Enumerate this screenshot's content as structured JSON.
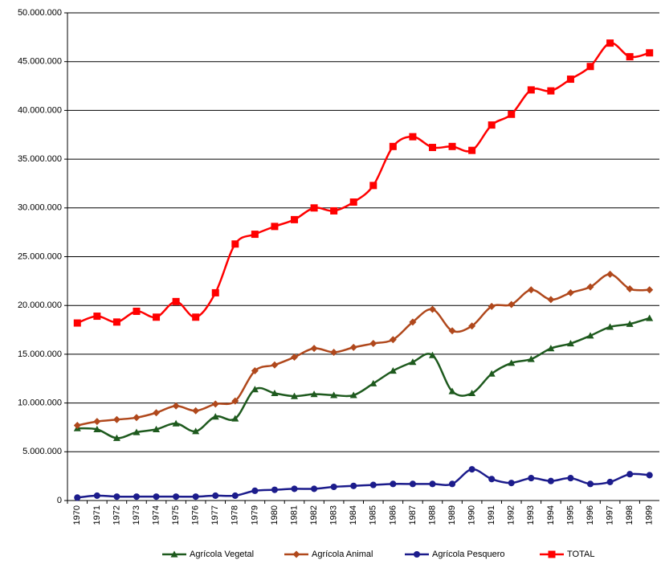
{
  "chart_data": {
    "type": "line",
    "categories": [
      "1970",
      "1971",
      "1972",
      "1973",
      "1974",
      "1975",
      "1976",
      "1977",
      "1978",
      "1979",
      "1980",
      "1981",
      "1982",
      "1983",
      "1984",
      "1985",
      "1986",
      "1987",
      "1988",
      "1989",
      "1990",
      "1991",
      "1992",
      "1993",
      "1994",
      "1995",
      "1996",
      "1997",
      "1998",
      "1999"
    ],
    "series": [
      {
        "name": "Agrícola Vegetal",
        "color": "#1e5a1e",
        "marker": "triangle",
        "values": [
          7400000,
          7300000,
          6400000,
          7000000,
          7300000,
          7900000,
          7100000,
          8600000,
          8400000,
          11400000,
          11000000,
          10700000,
          10900000,
          10800000,
          10800000,
          12000000,
          13300000,
          14200000,
          14900000,
          11200000,
          11000000,
          13000000,
          14100000,
          14500000,
          15600000,
          16100000,
          16900000,
          17800000,
          18100000,
          18700000
        ]
      },
      {
        "name": "Agrícola Animal",
        "color": "#b0481c",
        "marker": "diamond",
        "values": [
          7700000,
          8100000,
          8300000,
          8500000,
          9000000,
          9700000,
          9200000,
          9900000,
          10200000,
          13300000,
          13900000,
          14700000,
          15600000,
          15200000,
          15700000,
          16100000,
          16500000,
          18300000,
          19600000,
          17400000,
          17900000,
          19900000,
          20100000,
          21600000,
          20600000,
          21300000,
          21900000,
          23200000,
          21700000,
          21600000
        ]
      },
      {
        "name": "Agrícola Pesquero",
        "color": "#1c1c8c",
        "marker": "circle",
        "values": [
          300000,
          500000,
          400000,
          400000,
          400000,
          400000,
          400000,
          500000,
          500000,
          1000000,
          1100000,
          1200000,
          1200000,
          1400000,
          1500000,
          1600000,
          1700000,
          1700000,
          1700000,
          1700000,
          3200000,
          2200000,
          1800000,
          2300000,
          2000000,
          2300000,
          1700000,
          1900000,
          2700000,
          2600000
        ]
      },
      {
        "name": "TOTAL",
        "color": "#ff0000",
        "marker": "square",
        "values": [
          18200000,
          18900000,
          18300000,
          19400000,
          18800000,
          20400000,
          18800000,
          21300000,
          26300000,
          27300000,
          28100000,
          28800000,
          30000000,
          29700000,
          30600000,
          32300000,
          36300000,
          37300000,
          36200000,
          36300000,
          35900000,
          38500000,
          39600000,
          42100000,
          42000000,
          43200000,
          44500000,
          46900000,
          45500000,
          45900000
        ]
      }
    ],
    "ylim": [
      0,
      50000000
    ],
    "yticks": [
      0,
      {
        "value": 5000000,
        "label": "5.000.000"
      },
      {
        "value": 10000000,
        "label": "10.000.000"
      },
      {
        "value": 15000000,
        "label": "15.000.000"
      },
      {
        "value": 20000000,
        "label": "20.000.000"
      },
      {
        "value": 25000000,
        "label": "25.000.000"
      },
      {
        "value": 30000000,
        "label": "30.000.000"
      },
      {
        "value": 35000000,
        "label": "35.000.000"
      },
      {
        "value": 40000000,
        "label": "40.000.000"
      },
      {
        "value": 45000000,
        "label": "45.000.000"
      },
      {
        "value": 50000000,
        "label": "50.000.000"
      }
    ],
    "grid": true,
    "legend": "bottom"
  }
}
